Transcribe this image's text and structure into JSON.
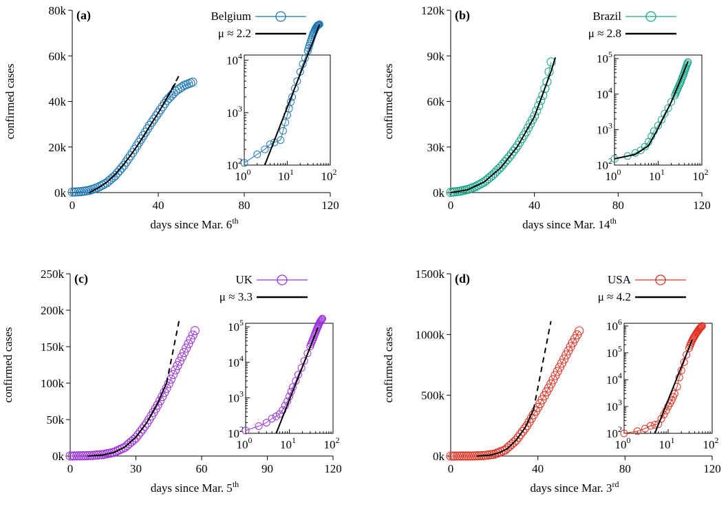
{
  "panels": [
    {
      "label": "(a)",
      "country": "Belgium",
      "color": "#1f77b4",
      "mu": "μ ≈ 2.2",
      "xlabel": "days since Mar. 6",
      "xlabel_sup": "th",
      "ylabel": "confirmed cases",
      "xticks": [
        "0",
        "40",
        "80",
        "120"
      ],
      "yticks": [
        "0k",
        "20k",
        "40k",
        "60k",
        "80k"
      ],
      "inset_xticks": [
        {
          "base": "10",
          "exp": "0"
        },
        {
          "base": "10",
          "exp": "1"
        },
        {
          "base": "10",
          "exp": "2"
        }
      ],
      "inset_yticks": [
        {
          "base": "10",
          "exp": "2"
        },
        {
          "base": "10",
          "exp": "3"
        },
        {
          "base": "10",
          "exp": "4"
        }
      ],
      "chart_data": {
        "type": "line",
        "x_range": [
          0,
          120
        ],
        "y_range": [
          0,
          80000
        ],
        "series_name": "Belgium",
        "x": [
          0,
          56
        ],
        "data_points": [
          [
            0,
            200
          ],
          [
            4,
            400
          ],
          [
            8,
            1000
          ],
          [
            12,
            2300
          ],
          [
            16,
            4300
          ],
          [
            20,
            7500
          ],
          [
            24,
            12000
          ],
          [
            28,
            17500
          ],
          [
            32,
            23500
          ],
          [
            36,
            29500
          ],
          [
            40,
            35000
          ],
          [
            44,
            40500
          ],
          [
            48,
            44500
          ],
          [
            52,
            47000
          ],
          [
            56,
            48500
          ]
        ],
        "fit_mu": 2.2,
        "fit_points": [
          [
            8,
            0
          ],
          [
            12,
            2000
          ],
          [
            16,
            4500
          ],
          [
            20,
            8000
          ],
          [
            24,
            12500
          ],
          [
            28,
            17500
          ],
          [
            32,
            23000
          ],
          [
            36,
            29000
          ],
          [
            40,
            35000
          ],
          [
            44,
            41500
          ],
          [
            48,
            48000
          ]
        ],
        "fit_dash": [
          [
            44,
            41500
          ],
          [
            50,
            52000
          ]
        ],
        "inset": {
          "x_log_range": [
            1,
            100
          ],
          "y_log_range": [
            100,
            60000
          ],
          "points": [
            [
              1,
              110
            ],
            [
              2,
              160
            ],
            [
              3,
              200
            ],
            [
              4,
              250
            ],
            [
              5,
              270
            ],
            [
              7,
              300
            ],
            [
              8,
              450
            ],
            [
              9,
              650
            ],
            [
              10,
              900
            ],
            [
              11,
              1200
            ],
            [
              12,
              1600
            ],
            [
              13,
              2000
            ],
            [
              15,
              2900
            ],
            [
              17,
              4000
            ],
            [
              20,
              6000
            ],
            [
              23,
              8500
            ],
            [
              26,
              11000
            ],
            [
              30,
              15000
            ],
            [
              35,
              23000
            ],
            [
              40,
              32000
            ],
            [
              45,
              40000
            ],
            [
              50,
              46000
            ],
            [
              56,
              48500
            ]
          ],
          "fit": [
            [
              3,
              100
            ],
            [
              56,
              48000
            ]
          ]
        }
      }
    },
    {
      "label": "(b)",
      "country": "Brazil",
      "color": "#17a589",
      "mu": "μ ≈ 2.8",
      "xlabel": "days since Mar. 14",
      "xlabel_sup": "th",
      "ylabel": "confirmed cases",
      "xticks": [
        "0",
        "40",
        "80",
        "120"
      ],
      "yticks": [
        "0k",
        "30k",
        "60k",
        "90k",
        "120k"
      ],
      "inset_xticks": [
        {
          "base": "10",
          "exp": "0"
        },
        {
          "base": "10",
          "exp": "1"
        },
        {
          "base": "10",
          "exp": "2"
        }
      ],
      "inset_yticks": [
        {
          "base": "10",
          "exp": "2"
        },
        {
          "base": "10",
          "exp": "3"
        },
        {
          "base": "10",
          "exp": "4"
        },
        {
          "base": "10",
          "exp": "5"
        }
      ],
      "chart_data": {
        "type": "line",
        "x_range": [
          0,
          120
        ],
        "y_range": [
          0,
          120000
        ],
        "series_name": "Brazil",
        "x": [
          0,
          48
        ],
        "data_points": [
          [
            0,
            200
          ],
          [
            4,
            800
          ],
          [
            8,
            2000
          ],
          [
            12,
            4000
          ],
          [
            16,
            7000
          ],
          [
            20,
            11500
          ],
          [
            24,
            17000
          ],
          [
            28,
            23500
          ],
          [
            32,
            31000
          ],
          [
            36,
            40000
          ],
          [
            40,
            50500
          ],
          [
            44,
            64000
          ],
          [
            46,
            73000
          ],
          [
            48,
            86000
          ]
        ],
        "fit_mu": 2.8,
        "fit_points": [
          [
            0,
            0
          ],
          [
            8,
            1800
          ],
          [
            16,
            7000
          ],
          [
            24,
            16500
          ],
          [
            32,
            30500
          ],
          [
            40,
            50000
          ],
          [
            48,
            80000
          ],
          [
            50,
            89000
          ]
        ],
        "fit_dash": [],
        "inset": {
          "x_log_range": [
            1,
            100
          ],
          "y_log_range": [
            100,
            100000
          ],
          "points": [
            [
              1,
              150
            ],
            [
              2,
              180
            ],
            [
              3,
              220
            ],
            [
              4,
              260
            ],
            [
              5,
              330
            ],
            [
              6,
              450
            ],
            [
              7,
              650
            ],
            [
              8,
              900
            ],
            [
              10,
              1300
            ],
            [
              12,
              1900
            ],
            [
              14,
              2800
            ],
            [
              17,
              4000
            ],
            [
              20,
              6000
            ],
            [
              24,
              9000
            ],
            [
              28,
              14000
            ],
            [
              33,
              22000
            ],
            [
              38,
              35000
            ],
            [
              43,
              55000
            ],
            [
              48,
              80000
            ]
          ],
          "fit": [
            [
              1,
              150
            ],
            [
              3,
              200
            ],
            [
              6,
              350
            ],
            [
              10,
              1100
            ],
            [
              20,
              6000
            ],
            [
              48,
              82000
            ]
          ]
        }
      }
    },
    {
      "label": "(c)",
      "country": "UK",
      "color": "#9b30d9",
      "mu": "μ ≈ 3.3",
      "xlabel": "days since Mar. 5",
      "xlabel_sup": "th",
      "ylabel": "confirmed cases",
      "xticks": [
        "0",
        "30",
        "60",
        "90",
        "120"
      ],
      "yticks": [
        "0k",
        "50k",
        "100k",
        "150k",
        "200k",
        "250k"
      ],
      "inset_xticks": [
        {
          "base": "10",
          "exp": "0"
        },
        {
          "base": "10",
          "exp": "1"
        },
        {
          "base": "10",
          "exp": "2"
        }
      ],
      "inset_yticks": [
        {
          "base": "10",
          "exp": "2"
        },
        {
          "base": "10",
          "exp": "3"
        },
        {
          "base": "10",
          "exp": "4"
        },
        {
          "base": "10",
          "exp": "5"
        }
      ],
      "chart_data": {
        "type": "line",
        "x_range": [
          0,
          120
        ],
        "y_range": [
          0,
          250000
        ],
        "series_name": "UK",
        "x": [
          0,
          57
        ],
        "data_points": [
          [
            0,
            100
          ],
          [
            5,
            300
          ],
          [
            10,
            800
          ],
          [
            15,
            2000
          ],
          [
            20,
            5000
          ],
          [
            25,
            12000
          ],
          [
            30,
            25000
          ],
          [
            35,
            45000
          ],
          [
            40,
            70000
          ],
          [
            44,
            93000
          ],
          [
            48,
            118000
          ],
          [
            52,
            142000
          ],
          [
            55,
            160000
          ],
          [
            57,
            172000
          ]
        ],
        "fit_mu": 3.3,
        "fit_points": [
          [
            8,
            0
          ],
          [
            15,
            1500
          ],
          [
            20,
            5000
          ],
          [
            25,
            12500
          ],
          [
            30,
            26000
          ],
          [
            35,
            46000
          ],
          [
            40,
            73000
          ],
          [
            44,
            100000
          ]
        ],
        "fit_dash": [
          [
            44,
            100000
          ],
          [
            50,
            190000
          ]
        ],
        "inset": {
          "x_log_range": [
            1,
            100
          ],
          "y_log_range": [
            100,
            200000
          ],
          "points": [
            [
              1,
              120
            ],
            [
              2,
              160
            ],
            [
              3,
              200
            ],
            [
              4,
              260
            ],
            [
              5,
              300
            ],
            [
              6,
              350
            ],
            [
              7,
              450
            ],
            [
              8,
              600
            ],
            [
              9,
              800
            ],
            [
              10,
              1100
            ],
            [
              11,
              1500
            ],
            [
              12,
              2000
            ],
            [
              14,
              3000
            ],
            [
              16,
              4500
            ],
            [
              19,
              7000
            ],
            [
              22,
              11000
            ],
            [
              26,
              18000
            ],
            [
              30,
              28000
            ],
            [
              35,
              45000
            ],
            [
              40,
              70000
            ],
            [
              45,
              100000
            ],
            [
              50,
              135000
            ],
            [
              57,
              170000
            ]
          ],
          "fit": [
            [
              5,
              100
            ],
            [
              45,
              95000
            ]
          ]
        }
      }
    },
    {
      "label": "(d)",
      "country": "USA",
      "color": "#e03020",
      "mu": "μ ≈ 4.2",
      "xlabel": "days since Mar. 3",
      "xlabel_sup": "rd",
      "ylabel": "confirmed cases",
      "xticks": [
        "0",
        "40",
        "80",
        "120"
      ],
      "yticks": [
        "0k",
        "500k",
        "1000k",
        "1500k"
      ],
      "inset_xticks": [
        {
          "base": "10",
          "exp": "0"
        },
        {
          "base": "10",
          "exp": "1"
        },
        {
          "base": "10",
          "exp": "2"
        }
      ],
      "inset_yticks": [
        {
          "base": "10",
          "exp": "2"
        },
        {
          "base": "10",
          "exp": "3"
        },
        {
          "base": "10",
          "exp": "4"
        },
        {
          "base": "10",
          "exp": "5"
        },
        {
          "base": "10",
          "exp": "6"
        }
      ],
      "chart_data": {
        "type": "line",
        "x_range": [
          0,
          120
        ],
        "y_range": [
          0,
          1500000
        ],
        "series_name": "USA",
        "x": [
          0,
          59
        ],
        "data_points": [
          [
            0,
            100
          ],
          [
            5,
            300
          ],
          [
            10,
            800
          ],
          [
            15,
            3500
          ],
          [
            20,
            15000
          ],
          [
            25,
            50000
          ],
          [
            30,
            130000
          ],
          [
            35,
            250000
          ],
          [
            40,
            400000
          ],
          [
            45,
            560000
          ],
          [
            50,
            730000
          ],
          [
            55,
            900000
          ],
          [
            59,
            1030000
          ]
        ],
        "fit_mu": 4.2,
        "fit_points": [
          [
            12,
            0
          ],
          [
            18,
            8000
          ],
          [
            22,
            25000
          ],
          [
            26,
            60000
          ],
          [
            30,
            130000
          ],
          [
            34,
            230000
          ],
          [
            38,
            380000
          ]
        ],
        "fit_dash": [
          [
            38,
            380000
          ],
          [
            46,
            1110000
          ]
        ],
        "inset": {
          "x_log_range": [
            1,
            100
          ],
          "y_log_range": [
            100,
            1000000
          ],
          "points": [
            [
              1,
              100
            ],
            [
              2,
              120
            ],
            [
              3,
              150
            ],
            [
              4,
              190
            ],
            [
              5,
              210
            ],
            [
              6,
              220
            ],
            [
              7,
              350
            ],
            [
              8,
              500
            ],
            [
              9,
              700
            ],
            [
              10,
              1000
            ],
            [
              11,
              1300
            ],
            [
              12,
              1700
            ],
            [
              13,
              2300
            ],
            [
              14,
              3000
            ],
            [
              16,
              5500
            ],
            [
              18,
              12000
            ],
            [
              20,
              22000
            ],
            [
              23,
              45000
            ],
            [
              26,
              85000
            ],
            [
              30,
              150000
            ],
            [
              35,
              280000
            ],
            [
              40,
              420000
            ],
            [
              46,
              600000
            ],
            [
              52,
              800000
            ],
            [
              59,
              1000000
            ]
          ],
          "fit": [
            [
              5,
              100
            ],
            [
              35,
              300000
            ]
          ]
        }
      }
    }
  ]
}
